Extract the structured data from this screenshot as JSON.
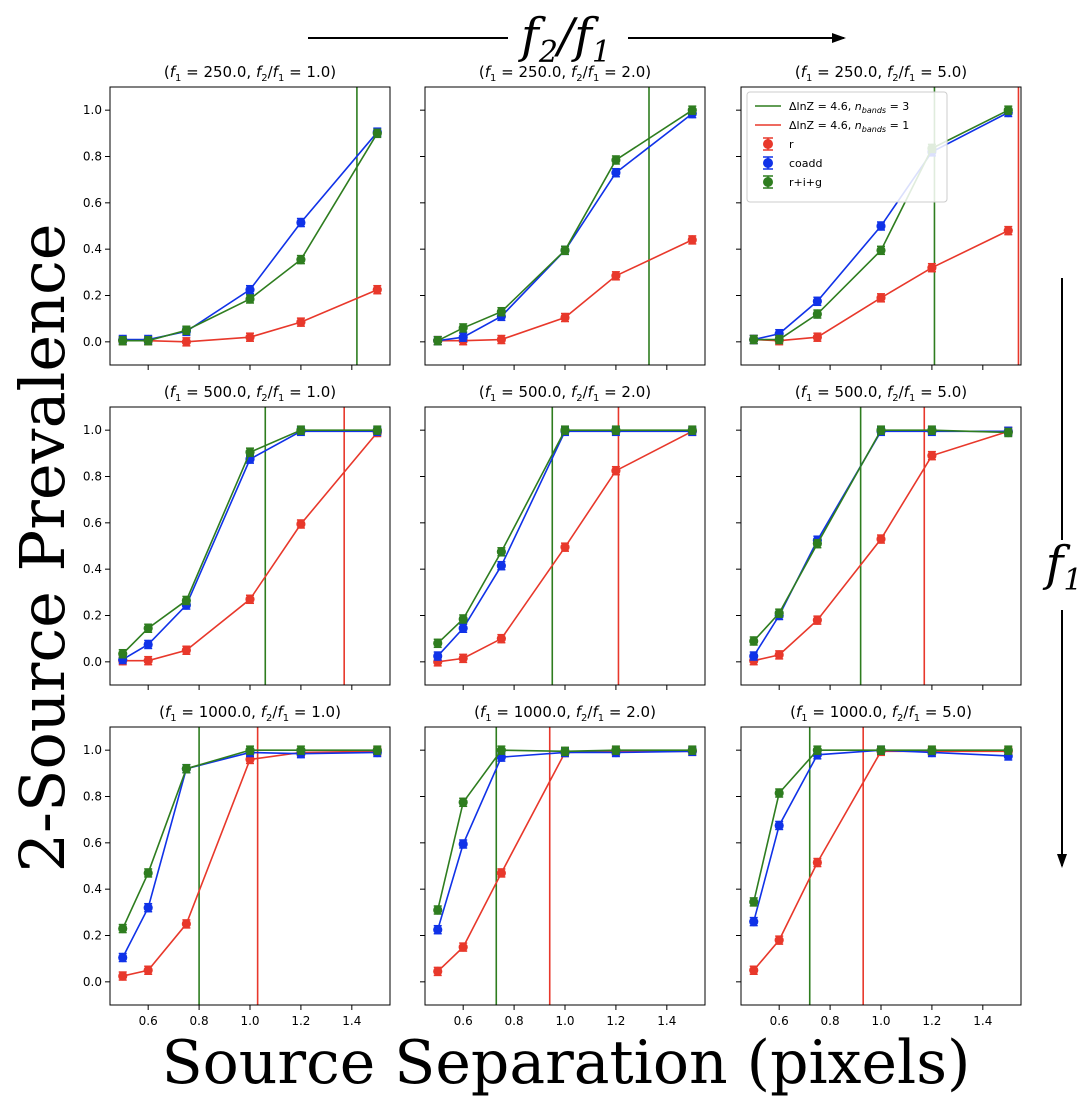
{
  "figure": {
    "top_label": "f2/f1",
    "right_label": "f1",
    "ylabel": "2-Source Prevalence",
    "xlabel": "Source Separation (pixels)"
  },
  "legend": {
    "entries": [
      {
        "key": "vline3",
        "label": "ΔlnZ = 4.6, n_bands = 3",
        "color": "#2e7d1f",
        "kind": "line"
      },
      {
        "key": "vline1",
        "label": "ΔlnZ = 4.6, n_bands = 1",
        "color": "#e8382b",
        "kind": "line"
      },
      {
        "key": "r",
        "label": "r",
        "color": "#e8382b",
        "kind": "marker"
      },
      {
        "key": "coadd",
        "label": "coadd",
        "color": "#1032e8",
        "kind": "marker"
      },
      {
        "key": "rig",
        "label": "r+i+g",
        "color": "#2e7d1f",
        "kind": "marker"
      }
    ]
  },
  "chart_data": [
    {
      "type": "line",
      "title": "(f1 = 250.0, f2/f1 = 1.0)",
      "f1": "250.0",
      "ratio": "1.0",
      "x": [
        0.5,
        0.6,
        0.75,
        1.0,
        1.2,
        1.5
      ],
      "ylim": [
        -0.1,
        1.1
      ],
      "xlim": [
        0.45,
        1.55
      ],
      "series": [
        {
          "name": "r",
          "values": [
            0.005,
            0.005,
            0.0,
            0.02,
            0.085,
            0.225
          ]
        },
        {
          "name": "coadd",
          "values": [
            0.01,
            0.01,
            0.045,
            0.225,
            0.515,
            0.905
          ]
        },
        {
          "name": "r+i+g",
          "values": [
            0.005,
            0.005,
            0.05,
            0.185,
            0.355,
            0.9
          ]
        }
      ],
      "vlines": {
        "r": null,
        "rig": 1.42
      }
    },
    {
      "type": "line",
      "title": "(f1 = 250.0, f2/f1 = 2.0)",
      "f1": "250.0",
      "ratio": "2.0",
      "x": [
        0.5,
        0.6,
        0.75,
        1.0,
        1.2,
        1.5
      ],
      "ylim": [
        -0.1,
        1.1
      ],
      "xlim": [
        0.45,
        1.55
      ],
      "series": [
        {
          "name": "r",
          "values": [
            0.005,
            0.005,
            0.01,
            0.105,
            0.285,
            0.44
          ]
        },
        {
          "name": "coadd",
          "values": [
            0.005,
            0.02,
            0.11,
            0.395,
            0.73,
            0.985
          ]
        },
        {
          "name": "r+i+g",
          "values": [
            0.005,
            0.06,
            0.13,
            0.395,
            0.785,
            1.0
          ]
        }
      ],
      "vlines": {
        "r": null,
        "rig": 1.33
      }
    },
    {
      "type": "line",
      "title": "(f1 = 250.0, f2/f1 = 5.0)",
      "f1": "250.0",
      "ratio": "5.0",
      "x": [
        0.5,
        0.6,
        0.75,
        1.0,
        1.2,
        1.5
      ],
      "ylim": [
        -0.1,
        1.1
      ],
      "xlim": [
        0.45,
        1.55
      ],
      "series": [
        {
          "name": "r",
          "values": [
            0.01,
            0.005,
            0.02,
            0.19,
            0.32,
            0.48
          ]
        },
        {
          "name": "coadd",
          "values": [
            0.01,
            0.035,
            0.175,
            0.5,
            0.82,
            0.99
          ]
        },
        {
          "name": "r+i+g",
          "values": [
            0.01,
            0.01,
            0.12,
            0.395,
            0.835,
            1.0
          ]
        }
      ],
      "vlines": {
        "r": 1.54,
        "rig": 1.21
      }
    },
    {
      "type": "line",
      "title": "(f1 = 500.0, f2/f1 = 1.0)",
      "f1": "500.0",
      "ratio": "1.0",
      "x": [
        0.5,
        0.6,
        0.75,
        1.0,
        1.2,
        1.5
      ],
      "ylim": [
        -0.1,
        1.1
      ],
      "xlim": [
        0.45,
        1.55
      ],
      "series": [
        {
          "name": "r",
          "values": [
            0.005,
            0.005,
            0.05,
            0.27,
            0.595,
            0.99
          ]
        },
        {
          "name": "coadd",
          "values": [
            0.01,
            0.075,
            0.245,
            0.875,
            0.995,
            0.995
          ]
        },
        {
          "name": "r+i+g",
          "values": [
            0.035,
            0.145,
            0.265,
            0.905,
            1.0,
            1.0
          ]
        }
      ],
      "vlines": {
        "r": 1.37,
        "rig": 1.06
      }
    },
    {
      "type": "line",
      "title": "(f1 = 500.0, f2/f1 = 2.0)",
      "f1": "500.0",
      "ratio": "2.0",
      "x": [
        0.5,
        0.6,
        0.75,
        1.0,
        1.2,
        1.5
      ],
      "ylim": [
        -0.1,
        1.1
      ],
      "xlim": [
        0.45,
        1.55
      ],
      "series": [
        {
          "name": "r",
          "values": [
            0.0,
            0.015,
            0.1,
            0.495,
            0.825,
            0.995
          ]
        },
        {
          "name": "coadd",
          "values": [
            0.025,
            0.145,
            0.415,
            0.995,
            0.995,
            0.995
          ]
        },
        {
          "name": "r+i+g",
          "values": [
            0.08,
            0.185,
            0.475,
            1.0,
            1.0,
            1.0
          ]
        }
      ],
      "vlines": {
        "r": 1.21,
        "rig": 0.95
      }
    },
    {
      "type": "line",
      "title": "(f1 = 500.0, f2/f1 = 5.0)",
      "f1": "500.0",
      "ratio": "5.0",
      "x": [
        0.5,
        0.6,
        0.75,
        1.0,
        1.2,
        1.5
      ],
      "ylim": [
        -0.1,
        1.1
      ],
      "xlim": [
        0.45,
        1.55
      ],
      "series": [
        {
          "name": "r",
          "values": [
            0.005,
            0.03,
            0.18,
            0.53,
            0.89,
            0.995
          ]
        },
        {
          "name": "coadd",
          "values": [
            0.025,
            0.2,
            0.525,
            0.995,
            0.995,
            0.995
          ]
        },
        {
          "name": "r+i+g",
          "values": [
            0.09,
            0.21,
            0.51,
            1.0,
            1.0,
            0.99
          ]
        }
      ],
      "vlines": {
        "r": 1.17,
        "rig": 0.92
      }
    },
    {
      "type": "line",
      "title": "(f1 = 1000.0, f2/f1 = 1.0)",
      "f1": "1000.0",
      "ratio": "1.0",
      "x": [
        0.5,
        0.6,
        0.75,
        1.0,
        1.2,
        1.5
      ],
      "ylim": [
        -0.1,
        1.1
      ],
      "xlim": [
        0.45,
        1.55
      ],
      "series": [
        {
          "name": "r",
          "values": [
            0.025,
            0.05,
            0.25,
            0.96,
            0.99,
            0.995
          ]
        },
        {
          "name": "coadd",
          "values": [
            0.105,
            0.32,
            0.92,
            0.99,
            0.985,
            0.99
          ]
        },
        {
          "name": "r+i+g",
          "values": [
            0.23,
            0.47,
            0.92,
            1.0,
            1.0,
            1.0
          ]
        }
      ],
      "vlines": {
        "r": 1.03,
        "rig": 0.8
      }
    },
    {
      "type": "line",
      "title": "(f1 = 1000.0, f2/f1 = 2.0)",
      "f1": "1000.0",
      "ratio": "2.0",
      "x": [
        0.5,
        0.6,
        0.75,
        1.0,
        1.2,
        1.5
      ],
      "ylim": [
        -0.1,
        1.1
      ],
      "xlim": [
        0.45,
        1.55
      ],
      "series": [
        {
          "name": "r",
          "values": [
            0.045,
            0.15,
            0.47,
            0.99,
            0.995,
            0.995
          ]
        },
        {
          "name": "coadd",
          "values": [
            0.225,
            0.595,
            0.97,
            0.99,
            0.99,
            0.995
          ]
        },
        {
          "name": "r+i+g",
          "values": [
            0.31,
            0.775,
            1.0,
            0.995,
            1.0,
            1.0
          ]
        }
      ],
      "vlines": {
        "r": 0.94,
        "rig": 0.73
      }
    },
    {
      "type": "line",
      "title": "(f1 = 1000.0, f2/f1 = 5.0)",
      "f1": "1000.0",
      "ratio": "5.0",
      "x": [
        0.5,
        0.6,
        0.75,
        1.0,
        1.2,
        1.5
      ],
      "ylim": [
        -0.1,
        1.1
      ],
      "xlim": [
        0.45,
        1.55
      ],
      "series": [
        {
          "name": "r",
          "values": [
            0.05,
            0.18,
            0.515,
            0.995,
            0.995,
            0.995
          ]
        },
        {
          "name": "coadd",
          "values": [
            0.26,
            0.675,
            0.98,
            1.0,
            0.99,
            0.975
          ]
        },
        {
          "name": "r+i+g",
          "values": [
            0.345,
            0.815,
            1.0,
            1.0,
            1.0,
            1.0
          ]
        }
      ],
      "vlines": {
        "r": 0.93,
        "rig": 0.72
      }
    }
  ],
  "axes": {
    "yticks": [
      "0.0",
      "0.2",
      "0.4",
      "0.6",
      "0.8",
      "1.0"
    ],
    "xticks": [
      "0.6",
      "0.8",
      "1.0",
      "1.2",
      "1.4"
    ]
  },
  "colors": {
    "r": "#e8382b",
    "coadd": "#1032e8",
    "rig": "#2e7d1f",
    "frame": "#000000"
  }
}
